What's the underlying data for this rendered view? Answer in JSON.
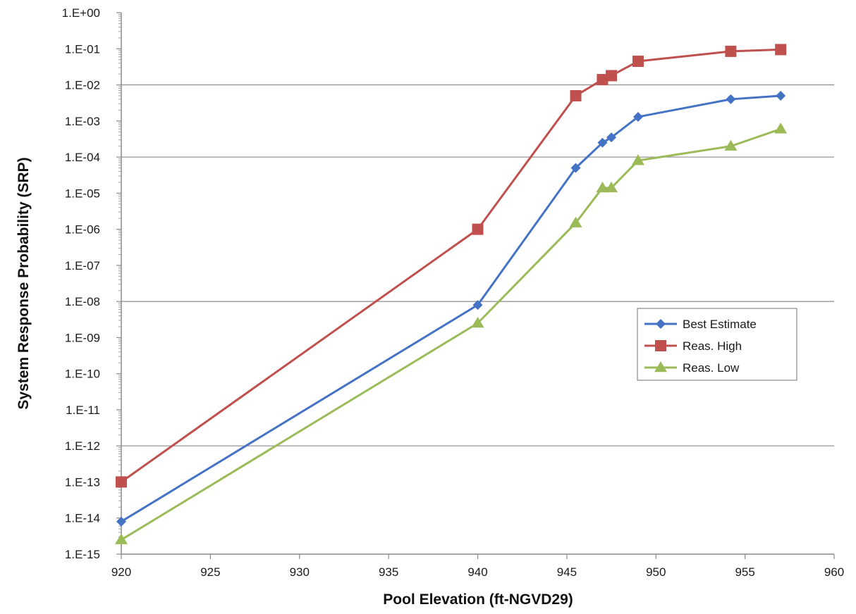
{
  "chart_data": {
    "type": "line",
    "xlabel": "Pool Elevation (ft-NGVD29)",
    "ylabel": "System Response Probability (SRP)",
    "y_scale": "log",
    "xlim": [
      920,
      960
    ],
    "ylim": [
      1e-15,
      1
    ],
    "x_ticks": [
      "920",
      "925",
      "930",
      "935",
      "940",
      "945",
      "950",
      "955",
      "960"
    ],
    "y_ticks": [
      "1.E+00",
      "1.E-01",
      "1.E-02",
      "1.E-03",
      "1.E-04",
      "1.E-05",
      "1.E-06",
      "1.E-07",
      "1.E-08",
      "1.E-09",
      "1.E-10",
      "1.E-11",
      "1.E-12",
      "1.E-13",
      "1.E-14",
      "1.E-15"
    ],
    "grid": "horizontal major lines at 1.E-02, 1.E-04, 1.E-08, 1.E-12",
    "legend_position": "right-middle",
    "series": [
      {
        "name": "Best Estimate",
        "color": "#4472C4",
        "marker": "diamond",
        "x": [
          920,
          940,
          945.5,
          947,
          947.5,
          949,
          954.2,
          957
        ],
        "y": [
          8e-15,
          8e-09,
          5e-05,
          0.00025,
          0.00035,
          0.0013,
          0.004,
          0.005
        ]
      },
      {
        "name": "Reas. High",
        "color": "#C0504D",
        "marker": "square",
        "x": [
          920,
          940,
          945.5,
          947,
          947.5,
          949,
          954.2,
          957
        ],
        "y": [
          1e-13,
          1e-06,
          0.005,
          0.014,
          0.018,
          0.045,
          0.085,
          0.095
        ]
      },
      {
        "name": "Reas. Low",
        "color": "#9BBB59",
        "marker": "triangle",
        "x": [
          920,
          940,
          945.5,
          947,
          947.5,
          949,
          954.2,
          957
        ],
        "y": [
          2.5e-15,
          2.5e-09,
          1.5e-06,
          1.4e-05,
          1.4e-05,
          8e-05,
          0.0002,
          0.0006
        ]
      }
    ]
  }
}
